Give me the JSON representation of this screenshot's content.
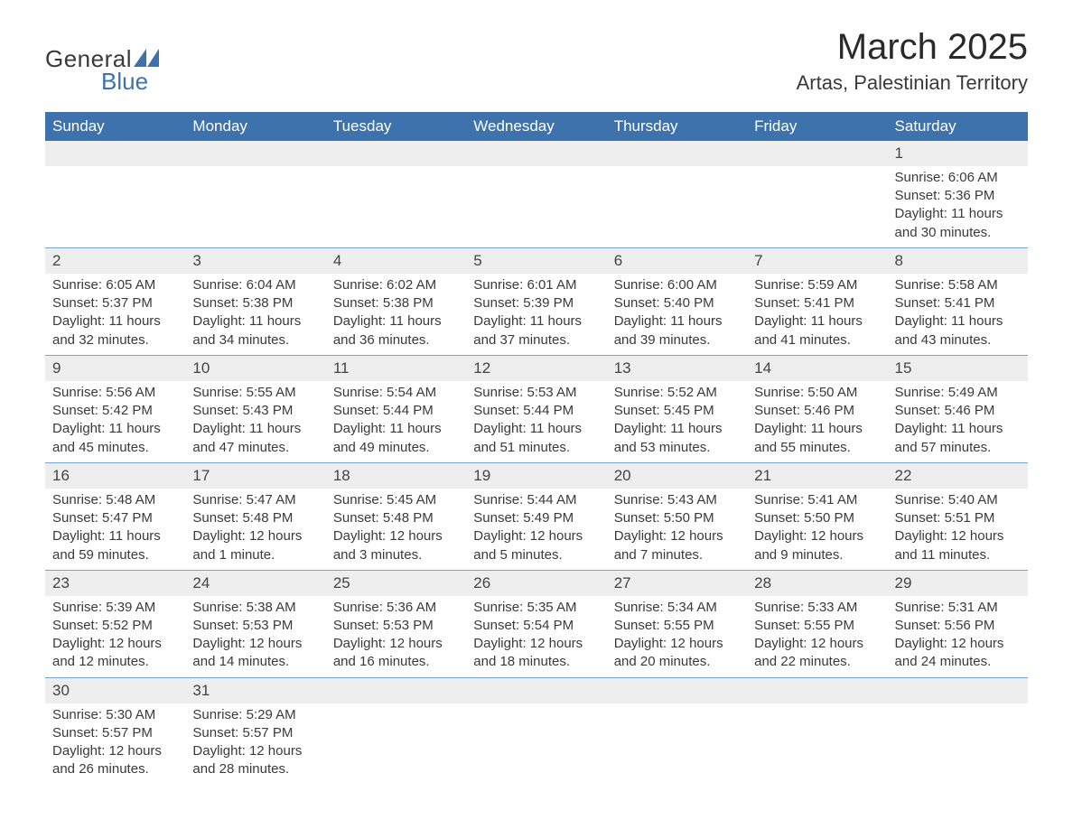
{
  "logo": {
    "word1": "General",
    "word2": "Blue",
    "accent_color": "#3d72ad"
  },
  "title": "March 2025",
  "subtitle": "Artas, Palestinian Territory",
  "day_headers": [
    "Sunday",
    "Monday",
    "Tuesday",
    "Wednesday",
    "Thursday",
    "Friday",
    "Saturday"
  ],
  "colors": {
    "header_bg": "#3d72ad",
    "header_text": "#ffffff",
    "daynum_bg": "#eeeeee",
    "row_border": "#7ba3cf",
    "body_text": "#3a3a3a",
    "page_bg": "#ffffff"
  },
  "typography": {
    "title_fontsize": 40,
    "subtitle_fontsize": 22,
    "header_fontsize": 17,
    "daynum_fontsize": 17,
    "cell_fontsize": 15
  },
  "weeks": [
    [
      null,
      null,
      null,
      null,
      null,
      null,
      {
        "day": "1",
        "sunrise": "Sunrise: 6:06 AM",
        "sunset": "Sunset: 5:36 PM",
        "dl1": "Daylight: 11 hours",
        "dl2": "and 30 minutes."
      }
    ],
    [
      {
        "day": "2",
        "sunrise": "Sunrise: 6:05 AM",
        "sunset": "Sunset: 5:37 PM",
        "dl1": "Daylight: 11 hours",
        "dl2": "and 32 minutes."
      },
      {
        "day": "3",
        "sunrise": "Sunrise: 6:04 AM",
        "sunset": "Sunset: 5:38 PM",
        "dl1": "Daylight: 11 hours",
        "dl2": "and 34 minutes."
      },
      {
        "day": "4",
        "sunrise": "Sunrise: 6:02 AM",
        "sunset": "Sunset: 5:38 PM",
        "dl1": "Daylight: 11 hours",
        "dl2": "and 36 minutes."
      },
      {
        "day": "5",
        "sunrise": "Sunrise: 6:01 AM",
        "sunset": "Sunset: 5:39 PM",
        "dl1": "Daylight: 11 hours",
        "dl2": "and 37 minutes."
      },
      {
        "day": "6",
        "sunrise": "Sunrise: 6:00 AM",
        "sunset": "Sunset: 5:40 PM",
        "dl1": "Daylight: 11 hours",
        "dl2": "and 39 minutes."
      },
      {
        "day": "7",
        "sunrise": "Sunrise: 5:59 AM",
        "sunset": "Sunset: 5:41 PM",
        "dl1": "Daylight: 11 hours",
        "dl2": "and 41 minutes."
      },
      {
        "day": "8",
        "sunrise": "Sunrise: 5:58 AM",
        "sunset": "Sunset: 5:41 PM",
        "dl1": "Daylight: 11 hours",
        "dl2": "and 43 minutes."
      }
    ],
    [
      {
        "day": "9",
        "sunrise": "Sunrise: 5:56 AM",
        "sunset": "Sunset: 5:42 PM",
        "dl1": "Daylight: 11 hours",
        "dl2": "and 45 minutes."
      },
      {
        "day": "10",
        "sunrise": "Sunrise: 5:55 AM",
        "sunset": "Sunset: 5:43 PM",
        "dl1": "Daylight: 11 hours",
        "dl2": "and 47 minutes."
      },
      {
        "day": "11",
        "sunrise": "Sunrise: 5:54 AM",
        "sunset": "Sunset: 5:44 PM",
        "dl1": "Daylight: 11 hours",
        "dl2": "and 49 minutes."
      },
      {
        "day": "12",
        "sunrise": "Sunrise: 5:53 AM",
        "sunset": "Sunset: 5:44 PM",
        "dl1": "Daylight: 11 hours",
        "dl2": "and 51 minutes."
      },
      {
        "day": "13",
        "sunrise": "Sunrise: 5:52 AM",
        "sunset": "Sunset: 5:45 PM",
        "dl1": "Daylight: 11 hours",
        "dl2": "and 53 minutes."
      },
      {
        "day": "14",
        "sunrise": "Sunrise: 5:50 AM",
        "sunset": "Sunset: 5:46 PM",
        "dl1": "Daylight: 11 hours",
        "dl2": "and 55 minutes."
      },
      {
        "day": "15",
        "sunrise": "Sunrise: 5:49 AM",
        "sunset": "Sunset: 5:46 PM",
        "dl1": "Daylight: 11 hours",
        "dl2": "and 57 minutes."
      }
    ],
    [
      {
        "day": "16",
        "sunrise": "Sunrise: 5:48 AM",
        "sunset": "Sunset: 5:47 PM",
        "dl1": "Daylight: 11 hours",
        "dl2": "and 59 minutes."
      },
      {
        "day": "17",
        "sunrise": "Sunrise: 5:47 AM",
        "sunset": "Sunset: 5:48 PM",
        "dl1": "Daylight: 12 hours",
        "dl2": "and 1 minute."
      },
      {
        "day": "18",
        "sunrise": "Sunrise: 5:45 AM",
        "sunset": "Sunset: 5:48 PM",
        "dl1": "Daylight: 12 hours",
        "dl2": "and 3 minutes."
      },
      {
        "day": "19",
        "sunrise": "Sunrise: 5:44 AM",
        "sunset": "Sunset: 5:49 PM",
        "dl1": "Daylight: 12 hours",
        "dl2": "and 5 minutes."
      },
      {
        "day": "20",
        "sunrise": "Sunrise: 5:43 AM",
        "sunset": "Sunset: 5:50 PM",
        "dl1": "Daylight: 12 hours",
        "dl2": "and 7 minutes."
      },
      {
        "day": "21",
        "sunrise": "Sunrise: 5:41 AM",
        "sunset": "Sunset: 5:50 PM",
        "dl1": "Daylight: 12 hours",
        "dl2": "and 9 minutes."
      },
      {
        "day": "22",
        "sunrise": "Sunrise: 5:40 AM",
        "sunset": "Sunset: 5:51 PM",
        "dl1": "Daylight: 12 hours",
        "dl2": "and 11 minutes."
      }
    ],
    [
      {
        "day": "23",
        "sunrise": "Sunrise: 5:39 AM",
        "sunset": "Sunset: 5:52 PM",
        "dl1": "Daylight: 12 hours",
        "dl2": "and 12 minutes."
      },
      {
        "day": "24",
        "sunrise": "Sunrise: 5:38 AM",
        "sunset": "Sunset: 5:53 PM",
        "dl1": "Daylight: 12 hours",
        "dl2": "and 14 minutes."
      },
      {
        "day": "25",
        "sunrise": "Sunrise: 5:36 AM",
        "sunset": "Sunset: 5:53 PM",
        "dl1": "Daylight: 12 hours",
        "dl2": "and 16 minutes."
      },
      {
        "day": "26",
        "sunrise": "Sunrise: 5:35 AM",
        "sunset": "Sunset: 5:54 PM",
        "dl1": "Daylight: 12 hours",
        "dl2": "and 18 minutes."
      },
      {
        "day": "27",
        "sunrise": "Sunrise: 5:34 AM",
        "sunset": "Sunset: 5:55 PM",
        "dl1": "Daylight: 12 hours",
        "dl2": "and 20 minutes."
      },
      {
        "day": "28",
        "sunrise": "Sunrise: 5:33 AM",
        "sunset": "Sunset: 5:55 PM",
        "dl1": "Daylight: 12 hours",
        "dl2": "and 22 minutes."
      },
      {
        "day": "29",
        "sunrise": "Sunrise: 5:31 AM",
        "sunset": "Sunset: 5:56 PM",
        "dl1": "Daylight: 12 hours",
        "dl2": "and 24 minutes."
      }
    ],
    [
      {
        "day": "30",
        "sunrise": "Sunrise: 5:30 AM",
        "sunset": "Sunset: 5:57 PM",
        "dl1": "Daylight: 12 hours",
        "dl2": "and 26 minutes."
      },
      {
        "day": "31",
        "sunrise": "Sunrise: 5:29 AM",
        "sunset": "Sunset: 5:57 PM",
        "dl1": "Daylight: 12 hours",
        "dl2": "and 28 minutes."
      },
      null,
      null,
      null,
      null,
      null
    ]
  ]
}
